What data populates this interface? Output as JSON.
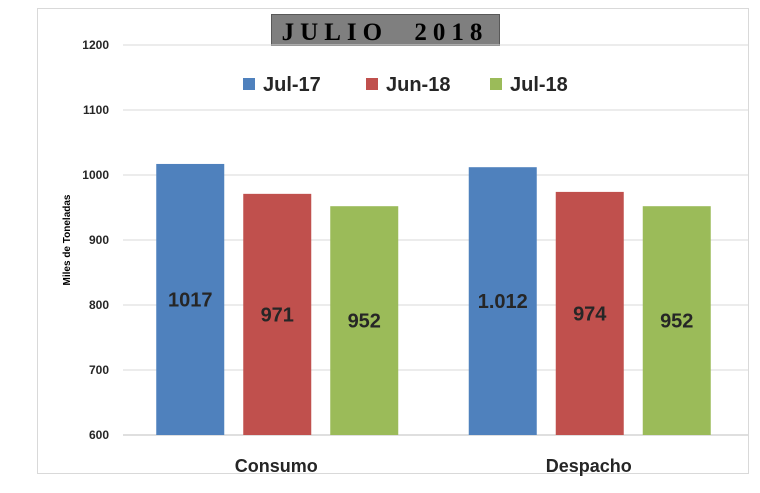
{
  "chart_data": {
    "type": "bar",
    "title": "JULIO",
    "title_year": "2018",
    "ylabel": "Miles de Toneladas",
    "xlabel": "",
    "ylim": [
      600,
      1200
    ],
    "yticks": [
      600,
      700,
      800,
      900,
      1000,
      1100,
      1200
    ],
    "grid": true,
    "legend_position": "top",
    "categories": [
      "Consumo",
      "Despacho"
    ],
    "series": [
      {
        "name": "Jul-17",
        "color": "#4f81bd",
        "values": [
          1017,
          1012
        ],
        "labels": [
          "1017",
          "1.012"
        ]
      },
      {
        "name": "Jun-18",
        "color": "#c0504d",
        "values": [
          971,
          974
        ],
        "labels": [
          "971",
          "974"
        ]
      },
      {
        "name": "Jul-18",
        "color": "#9bbb59",
        "values": [
          952,
          952
        ],
        "labels": [
          "952",
          "952"
        ]
      }
    ]
  }
}
